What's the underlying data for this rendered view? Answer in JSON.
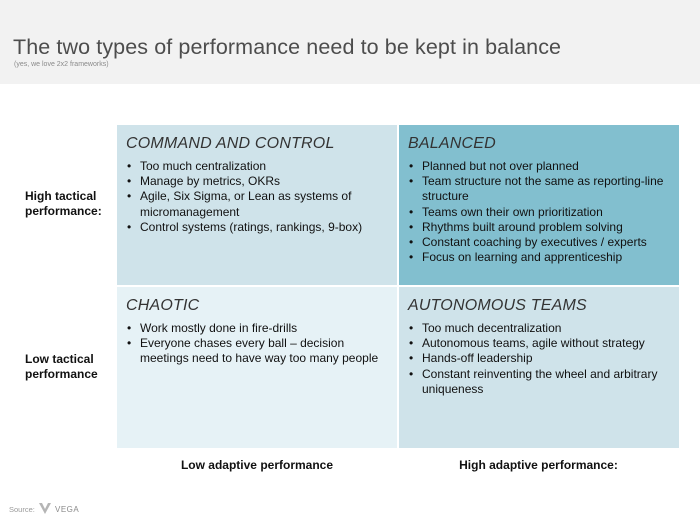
{
  "header": {
    "title": "The two types of performance need to be kept in balance",
    "subtitle": "(yes, we love 2x2 frameworks)"
  },
  "rows": {
    "high_label": "High tactical performance:",
    "low_label": "Low tactical performance"
  },
  "columns": {
    "low_label": "Low adaptive performance",
    "high_label": "High adaptive performance:"
  },
  "quadrants": {
    "command_and_control": {
      "title": "COMMAND AND CONTROL",
      "items": [
        "Too much centralization",
        "Manage by metrics, OKRs",
        "Agile, Six Sigma, or Lean as systems of micromanagement",
        "Control systems (ratings, rankings, 9-box)"
      ]
    },
    "balanced": {
      "title": "BALANCED",
      "items": [
        "Planned but not over planned",
        "Team structure not the same as reporting-line structure",
        "Teams own their own prioritization",
        "Rhythms built around problem solving",
        "Constant coaching by executives / experts",
        "Focus on learning and apprenticeship"
      ]
    },
    "chaotic": {
      "title": "CHAOTIC",
      "items": [
        "Work mostly done in fire-drills",
        "Everyone chases every ball – decision meetings need to have way too many people"
      ]
    },
    "autonomous_teams": {
      "title": "AUTONOMOUS TEAMS",
      "items": [
        "Too much decentralization",
        "Autonomous teams, agile without strategy",
        "Hands-off leadership",
        "Constant reinventing the wheel and arbitrary uniqueness"
      ]
    }
  },
  "footer": {
    "source_label": "Source:",
    "logo_text": "VEGA"
  },
  "colors": {
    "quadrant_light": "#cfe3ea",
    "quadrant_dark": "#82bfcf",
    "quadrant_lightest": "#e6f2f6",
    "title_band": "#f2f2f2"
  }
}
